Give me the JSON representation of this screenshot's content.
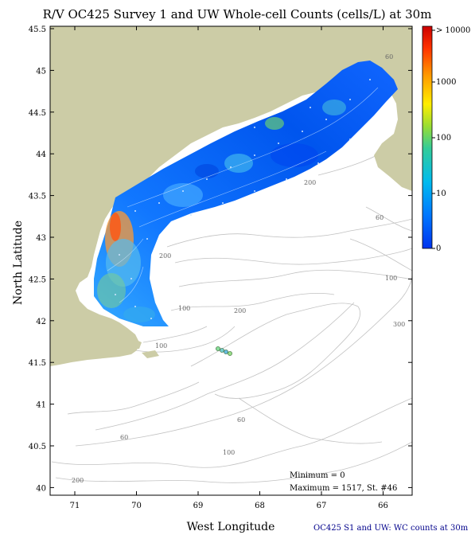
{
  "title": "R/V OC425 Survey 1 and UW Whole-cell Counts (cells/L) at 30m",
  "x_axis": {
    "label": "West Longitude",
    "ticks": [
      "71",
      "70",
      "69",
      "68",
      "67",
      "66"
    ]
  },
  "y_axis": {
    "label": "North Latitude",
    "ticks": [
      "45.5",
      "45",
      "44.5",
      "44",
      "43.5",
      "43",
      "42.5",
      "42",
      "41.5",
      "41",
      "40.5",
      "40"
    ]
  },
  "colorbar": {
    "labels": [
      "> 10000",
      "1000",
      "100",
      "10",
      "0"
    ],
    "colors": [
      "#cc0000",
      "#ff3300",
      "#ff9900",
      "#ffee00",
      "#99dd33",
      "#33cc99",
      "#00bbee",
      "#0099ff",
      "#0066ff",
      "#0033ee"
    ]
  },
  "contour_labels": [
    "60",
    "200",
    "60",
    "200",
    "100",
    "100",
    "200",
    "300",
    "100",
    "60",
    "60",
    "100",
    "200"
  ],
  "stats": {
    "minimum": "Minimum = 0",
    "maximum": "Maximum = 1517, St. #46"
  },
  "caption": "OC425 S1 and UW: WC counts at 30m",
  "colors": {
    "land": "#cccca6",
    "ocean": "#ffffff",
    "contour": "#bbbbbb"
  }
}
